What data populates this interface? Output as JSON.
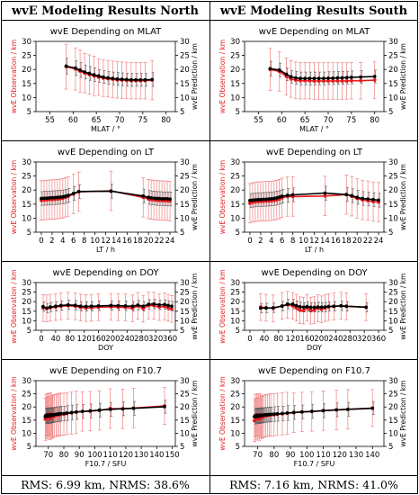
{
  "headers": {
    "north": "wvE Modeling Results North",
    "south": "wvE Modeling Results South"
  },
  "footer": {
    "north": "RMS: 6.99 km, NRMS: 38.6%",
    "south": "RMS: 7.16 km, NRMS: 41.0%"
  },
  "colors": {
    "observation": "#e8191c",
    "prediction": "#000000",
    "errorbar": "#f08080"
  },
  "chart_data": [
    {
      "type": "line",
      "panel": "north",
      "row": 0,
      "title": "wvE Depending on MLAT",
      "xlabel": "MLAT / °",
      "ylabel_left": "wvE Observation / km",
      "ylabel_right": "wvE Prediction / km",
      "xlim": [
        52,
        82
      ],
      "ylim": [
        5,
        30
      ],
      "xticks": [
        55,
        60,
        65,
        70,
        75,
        80
      ],
      "yticks": [
        5,
        10,
        15,
        20,
        25,
        30
      ],
      "x": [
        58.5,
        60.5,
        61.5,
        62.5,
        63.5,
        64.5,
        65.5,
        66.5,
        67.5,
        68.5,
        69.5,
        70.5,
        71.5,
        72.5,
        73.5,
        74.5,
        75.5,
        77
      ],
      "series": [
        {
          "name": "Observation",
          "color": "#e8191c",
          "values": [
            21,
            20.2,
            19.4,
            18.7,
            18.2,
            17.7,
            17.3,
            16.9,
            16.7,
            16.5,
            16.3,
            16.2,
            16.1,
            16.0,
            16.0,
            16.0,
            16.0,
            16.2
          ],
          "err": [
            8,
            7.5,
            7.5,
            7,
            7,
            7,
            6.5,
            6.5,
            6.5,
            6.5,
            6.5,
            6.5,
            6.5,
            6.5,
            6.5,
            6.5,
            6.5,
            7
          ]
        },
        {
          "name": "Prediction",
          "color": "#000000",
          "values": [
            21.2,
            20.5,
            19.8,
            19.1,
            18.6,
            18.1,
            17.7,
            17.3,
            17.0,
            16.8,
            16.6,
            16.5,
            16.4,
            16.3,
            16.3,
            16.3,
            16.3,
            16.4
          ]
        }
      ]
    },
    {
      "type": "line",
      "panel": "south",
      "row": 0,
      "title": "wvE Depending on MLAT",
      "xlabel": "MLAT / °",
      "ylabel_left": "wvE Observation / km",
      "ylabel_right": "wvE Prediction / km",
      "xlim": [
        52,
        82
      ],
      "ylim": [
        5,
        30
      ],
      "xticks": [
        55,
        60,
        65,
        70,
        75,
        80
      ],
      "yticks": [
        5,
        10,
        15,
        20,
        25,
        30
      ],
      "x": [
        57.5,
        59.5,
        61,
        62,
        63,
        64,
        65,
        66,
        67,
        68,
        69,
        70,
        71,
        72,
        73,
        74,
        75,
        77,
        80
      ],
      "series": [
        {
          "name": "Observation",
          "color": "#e8191c",
          "values": [
            20,
            19.3,
            17.5,
            16.6,
            16.2,
            16.0,
            16.0,
            16.0,
            15.9,
            15.9,
            15.9,
            15.9,
            15.9,
            15.9,
            15.9,
            15.9,
            16.0,
            16.0,
            16.2
          ],
          "err": [
            7.5,
            7,
            6.5,
            6.5,
            6.5,
            6.5,
            6.5,
            6.5,
            6.5,
            6.5,
            6.5,
            6.5,
            6.5,
            6.5,
            6.5,
            6.5,
            6.5,
            6.5,
            6.5
          ]
        },
        {
          "name": "Prediction",
          "color": "#000000",
          "values": [
            20.3,
            19.8,
            18.3,
            17.4,
            17.0,
            16.8,
            16.8,
            16.8,
            16.8,
            16.8,
            16.8,
            16.9,
            16.9,
            17.0,
            17.0,
            17.1,
            17.2,
            17.3,
            17.5
          ]
        }
      ]
    },
    {
      "type": "line",
      "panel": "north",
      "row": 1,
      "title": "wvE Depending on LT",
      "xlabel": "LT / h",
      "ylabel_left": "wvE Observation / km",
      "ylabel_right": "wvE Prediction / km",
      "xlim": [
        -1,
        25
      ],
      "ylim": [
        5,
        30
      ],
      "xticks": [
        0,
        2,
        4,
        6,
        8,
        10,
        12,
        14,
        16,
        18,
        20,
        22,
        24
      ],
      "yticks": [
        5,
        10,
        15,
        20,
        25,
        30
      ],
      "x": [
        0,
        0.5,
        1,
        1.5,
        2,
        2.5,
        3,
        3.5,
        4,
        4.5,
        5,
        6,
        7,
        13,
        19,
        20,
        20.5,
        21,
        21.5,
        22,
        22.5,
        23,
        23.5,
        24
      ],
      "series": [
        {
          "name": "Observation",
          "color": "#e8191c",
          "values": [
            16.3,
            16.4,
            16.5,
            16.6,
            16.6,
            16.7,
            16.8,
            16.9,
            17.1,
            17.4,
            17.7,
            18.6,
            19.4,
            19.7,
            17.4,
            16.8,
            16.6,
            16.5,
            16.4,
            16.3,
            16.3,
            16.2,
            16.2,
            16.1
          ],
          "err": [
            7,
            7,
            7,
            7,
            7,
            7,
            7,
            7,
            7,
            7,
            7,
            7,
            7,
            7,
            7,
            7,
            7,
            7,
            7,
            7,
            7,
            7,
            7,
            7
          ]
        },
        {
          "name": "Prediction",
          "color": "#000000",
          "values": [
            17.0,
            17.1,
            17.1,
            17.2,
            17.3,
            17.3,
            17.4,
            17.5,
            17.6,
            17.8,
            18.1,
            18.8,
            19.5,
            19.6,
            17.9,
            17.4,
            17.2,
            17.1,
            17.0,
            17.0,
            16.9,
            16.9,
            16.9,
            16.8
          ]
        }
      ]
    },
    {
      "type": "line",
      "panel": "south",
      "row": 1,
      "title": "wvE Depending on LT",
      "xlabel": "LT / h",
      "ylabel_left": "wvE Observation / km",
      "ylabel_right": "wvE Prediction / km",
      "xlim": [
        -1,
        25
      ],
      "ylim": [
        5,
        30
      ],
      "xticks": [
        0,
        2,
        4,
        6,
        8,
        10,
        12,
        14,
        16,
        18,
        20,
        22,
        24
      ],
      "yticks": [
        5,
        10,
        15,
        20,
        25,
        30
      ],
      "x": [
        0,
        0.5,
        1,
        1.5,
        2,
        2.5,
        3,
        3.5,
        4,
        4.5,
        5,
        5.5,
        6,
        7,
        8,
        14,
        18,
        19,
        20,
        21,
        22,
        23,
        24
      ],
      "series": [
        {
          "name": "Observation",
          "color": "#e8191c",
          "values": [
            15.3,
            15.6,
            15.8,
            15.9,
            16.0,
            16.0,
            16.1,
            16.1,
            16.2,
            16.3,
            16.5,
            16.8,
            17.3,
            17.7,
            17.7,
            17.9,
            18.4,
            17.8,
            17.0,
            16.5,
            16.2,
            15.9,
            15.7
          ],
          "err": [
            7,
            7,
            7,
            7,
            7,
            7,
            7,
            7,
            7,
            7,
            7,
            7,
            7,
            7,
            7,
            7,
            7,
            7,
            7,
            7,
            7,
            7,
            7
          ]
        },
        {
          "name": "Prediction",
          "color": "#000000",
          "values": [
            16.3,
            16.4,
            16.5,
            16.6,
            16.6,
            16.7,
            16.7,
            16.8,
            16.9,
            17.0,
            17.2,
            17.5,
            17.8,
            18.1,
            18.3,
            18.9,
            18.4,
            18.0,
            17.4,
            17.0,
            16.8,
            16.6,
            16.4
          ]
        }
      ]
    },
    {
      "type": "line",
      "panel": "north",
      "row": 2,
      "title": "wvE Depending on DOY",
      "xlabel": "DOY",
      "ylabel_left": "wvE Observation / km",
      "ylabel_right": "wvE Prediction / km",
      "xlim": [
        -15,
        375
      ],
      "ylim": [
        5,
        30
      ],
      "xticks": [
        0,
        40,
        80,
        120,
        160,
        200,
        240,
        280,
        320,
        360
      ],
      "yticks": [
        5,
        10,
        15,
        20,
        25,
        30
      ],
      "x": [
        5,
        15,
        25,
        40,
        55,
        75,
        95,
        110,
        125,
        140,
        160,
        195,
        215,
        235,
        255,
        270,
        285,
        300,
        315,
        330,
        345,
        355,
        365
      ],
      "series": [
        {
          "name": "Observation",
          "color": "#e8191c",
          "values": [
            16.7,
            16.5,
            16.8,
            17.2,
            17.6,
            17.9,
            17.6,
            17.0,
            16.7,
            16.8,
            17.1,
            17.3,
            17.1,
            17.0,
            16.5,
            17.8,
            16.3,
            18.0,
            17.9,
            17.2,
            17.5,
            16.8,
            16.2
          ],
          "err": [
            7,
            7,
            7,
            7,
            7,
            7,
            7,
            7,
            7,
            7,
            7,
            7,
            7,
            7,
            7,
            7,
            7,
            7,
            7,
            7,
            7,
            7,
            7
          ]
        },
        {
          "name": "Prediction",
          "color": "#000000",
          "values": [
            17.4,
            16.6,
            17.2,
            17.6,
            18.0,
            18.3,
            18.1,
            17.6,
            17.5,
            17.6,
            17.8,
            18.0,
            17.9,
            17.8,
            17.6,
            18.2,
            17.6,
            18.6,
            18.8,
            18.3,
            18.5,
            18.0,
            17.6
          ]
        }
      ]
    },
    {
      "type": "line",
      "panel": "south",
      "row": 2,
      "title": "wvE Depending on DOY",
      "xlabel": "DOY",
      "ylabel_left": "wvE Observation / km",
      "ylabel_right": "wvE Prediction / km",
      "xlim": [
        -15,
        375
      ],
      "ylim": [
        5,
        30
      ],
      "xticks": [
        0,
        40,
        80,
        120,
        160,
        200,
        240,
        280,
        320,
        360
      ],
      "yticks": [
        5,
        10,
        15,
        20,
        25,
        30
      ],
      "x": [
        30,
        45,
        65,
        90,
        105,
        120,
        130,
        140,
        150,
        160,
        170,
        180,
        190,
        200,
        210,
        220,
        235,
        255,
        270,
        325
      ],
      "series": [
        {
          "name": "Observation",
          "color": "#e8191c",
          "values": [
            17.2,
            16.8,
            16.5,
            17.8,
            18.3,
            17.8,
            16.8,
            15.5,
            15.3,
            16.8,
            15.3,
            15.6,
            16.6,
            16.0,
            16.7,
            17.2,
            17.5,
            17.9,
            17.6,
            17.1
          ],
          "err": [
            7,
            7,
            7,
            7,
            7,
            7,
            7,
            7,
            7,
            7,
            7,
            7,
            7,
            7,
            7,
            7,
            7,
            7,
            7,
            7
          ]
        },
        {
          "name": "Prediction",
          "color": "#000000",
          "values": [
            16.6,
            16.7,
            16.8,
            17.7,
            18.7,
            18.7,
            17.9,
            17.3,
            17.1,
            17.4,
            17.0,
            17.0,
            17.2,
            17.1,
            17.2,
            17.5,
            17.6,
            17.8,
            17.6,
            17.1
          ]
        }
      ]
    },
    {
      "type": "line",
      "panel": "north",
      "row": 3,
      "title": "wvE Depending on F10.7",
      "xlabel": "F10.7 / SFU",
      "ylabel_left": "wvE Observation / km",
      "ylabel_right": "wvE Prediction / km",
      "xlim": [
        62,
        152
      ],
      "ylim": [
        5,
        30
      ],
      "xticks": [
        60,
        70,
        80,
        90,
        100,
        110,
        120,
        130,
        140,
        150
      ],
      "yticks": [
        5,
        10,
        15,
        20,
        25,
        30
      ],
      "x": [
        68,
        68.5,
        69,
        69.5,
        70,
        70.5,
        71,
        71.5,
        72,
        72.5,
        73,
        74,
        75,
        76,
        77,
        78,
        80,
        82,
        85,
        88,
        92,
        97,
        103,
        110,
        118,
        125,
        145
      ],
      "series": [
        {
          "name": "Observation",
          "color": "#e8191c",
          "values": [
            15.3,
            16.8,
            15.8,
            17.2,
            16.1,
            16.9,
            15.5,
            17.4,
            16.0,
            16.6,
            16.3,
            16.7,
            16.8,
            17.1,
            16.9,
            17.3,
            17.2,
            17.5,
            17.7,
            18.0,
            18.3,
            18.4,
            18.7,
            19.4,
            19.3,
            19.6,
            20.4
          ],
          "err": [
            8,
            8,
            8,
            8,
            8,
            8,
            8,
            8,
            8,
            8,
            8,
            8,
            8,
            8,
            8,
            8,
            8,
            8,
            8,
            8,
            7.5,
            7.5,
            7.5,
            7.5,
            7.5,
            7.5,
            7
          ]
        },
        {
          "name": "Prediction",
          "color": "#000000",
          "values": [
            16.4,
            16.8,
            16.5,
            16.9,
            16.6,
            16.9,
            16.6,
            17.0,
            16.8,
            17.0,
            16.9,
            17.1,
            17.2,
            17.3,
            17.3,
            17.5,
            17.5,
            17.7,
            17.9,
            18.1,
            18.3,
            18.5,
            18.8,
            19.1,
            19.3,
            19.5,
            20.1
          ]
        }
      ]
    },
    {
      "type": "line",
      "panel": "south",
      "row": 3,
      "title": "wvE Depending on F10.7",
      "xlabel": "F10.7 / SFU",
      "ylabel_left": "wvE Observation / km",
      "ylabel_right": "wvE Prediction / km",
      "xlim": [
        62,
        147
      ],
      "ylim": [
        5,
        30
      ],
      "xticks": [
        60,
        70,
        80,
        90,
        100,
        110,
        120,
        130,
        140
      ],
      "yticks": [
        5,
        10,
        15,
        20,
        25,
        30
      ],
      "x": [
        68,
        68.5,
        69,
        69.5,
        70,
        70.5,
        71,
        71.5,
        72,
        72.5,
        73,
        74,
        75,
        76,
        77,
        78,
        80,
        82,
        85,
        88,
        92,
        97,
        103,
        110,
        118,
        125,
        140
      ],
      "series": [
        {
          "name": "Observation",
          "color": "#e8191c",
          "values": [
            14.8,
            16.6,
            15.4,
            17.0,
            15.8,
            16.7,
            15.3,
            17.1,
            16.0,
            16.4,
            16.1,
            16.5,
            16.7,
            16.8,
            16.9,
            17.0,
            17.0,
            17.2,
            17.4,
            17.6,
            17.8,
            18.1,
            18.3,
            18.6,
            18.9,
            19.1,
            19.6
          ],
          "err": [
            8,
            8,
            8,
            8,
            8,
            8,
            8,
            8,
            8,
            8,
            8,
            8,
            8,
            8,
            8,
            8,
            8,
            8,
            8,
            8,
            7.5,
            7.5,
            7.5,
            7.5,
            7.5,
            7.5,
            7
          ]
        },
        {
          "name": "Prediction",
          "color": "#000000",
          "values": [
            16.3,
            16.7,
            16.4,
            16.8,
            16.5,
            16.8,
            16.5,
            16.9,
            16.7,
            16.9,
            16.8,
            17.0,
            17.0,
            17.1,
            17.1,
            17.2,
            17.3,
            17.4,
            17.5,
            17.7,
            17.9,
            18.1,
            18.3,
            18.6,
            18.9,
            19.1,
            19.5
          ]
        }
      ]
    }
  ]
}
